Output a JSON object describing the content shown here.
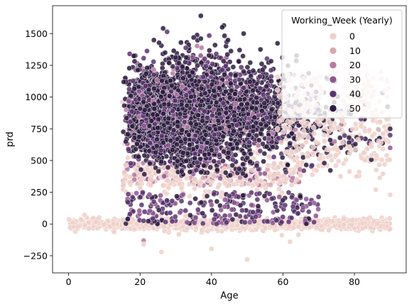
{
  "chart_data": {
    "type": "scatter",
    "title": "",
    "xlabel": "Age",
    "ylabel": "prd",
    "xlim": [
      -4.5,
      94.5
    ],
    "ylim": [
      -385,
      1720
    ],
    "x_ticks": [
      0,
      20,
      40,
      60,
      80
    ],
    "y_ticks": [
      -250,
      0,
      250,
      500,
      750,
      1000,
      1250,
      1500
    ],
    "y_tick_labels": [
      "−250",
      "0",
      "250",
      "500",
      "750",
      "1000",
      "1250",
      "1500"
    ],
    "grid": false,
    "legend": {
      "title": "Working_Week (Yearly)",
      "placement": "top-right",
      "entries": [
        {
          "label": "0",
          "color": "#efd0c9"
        },
        {
          "label": "10",
          "color": "#dba8b0"
        },
        {
          "label": "20",
          "color": "#b97aa0"
        },
        {
          "label": "30",
          "color": "#8e5690"
        },
        {
          "label": "40",
          "color": "#5c3470"
        },
        {
          "label": "50",
          "color": "#2d1c40"
        }
      ]
    },
    "hue_colormap": [
      {
        "value": 0,
        "color": "#efd0c9"
      },
      {
        "value": 10,
        "color": "#dba8b0"
      },
      {
        "value": 20,
        "color": "#b97aa0"
      },
      {
        "value": 30,
        "color": "#8e5690"
      },
      {
        "value": 40,
        "color": "#5c3470"
      },
      {
        "value": 50,
        "color": "#2d1c40"
      },
      {
        "value": 52,
        "color": "#2a1a3c"
      }
    ],
    "series": [
      {
        "name": "Working_Week = 0 (baseline band)",
        "hue": 0,
        "x_range": [
          0,
          90
        ],
        "y_center": 0,
        "y_spread": 30,
        "notes": "dense horizontal band of points near prd 0 across all ages"
      },
      {
        "name": "Working_Week = 0 (scattered)",
        "hue": 0,
        "x_range": [
          15,
          90
        ],
        "y_range": [
          200,
          1000
        ],
        "notes": "light points scattered above the band, especially ages 60-90"
      },
      {
        "name": "Working_Week 20-52 (main cloud)",
        "hue_range": [
          20,
          52
        ],
        "x_range": [
          15,
          90
        ],
        "y_center": 850,
        "y_spread": 200,
        "y_max": 1640,
        "notes": "dense dark cloud, peak near age 37-40"
      },
      {
        "name": "Working_Week 10-30 (lower band)",
        "hue_range": [
          10,
          30
        ],
        "x_range": [
          15,
          65
        ],
        "y_range": [
          300,
          480
        ],
        "notes": "mid-tone points forming a band around prd 300-480"
      },
      {
        "name": "Working_Week 30-52 (low scatter)",
        "hue_range": [
          30,
          52
        ],
        "x_range": [
          16,
          70
        ],
        "y_range": [
          0,
          250
        ],
        "notes": "sparser points between the baseline and the main cloud"
      }
    ],
    "highlighted_points": [
      {
        "x": 37,
        "y": 1640,
        "hue": 52
      },
      {
        "x": 35,
        "y": 1470,
        "hue": 52
      },
      {
        "x": 37,
        "y": 1460,
        "hue": 52
      },
      {
        "x": 43,
        "y": 1550,
        "hue": 52
      },
      {
        "x": 49,
        "y": 1500,
        "hue": 52
      },
      {
        "x": 20,
        "y": 1250,
        "hue": 50
      },
      {
        "x": 27,
        "y": 1350,
        "hue": 50
      },
      {
        "x": 90,
        "y": 750,
        "hue": 50
      },
      {
        "x": 90,
        "y": 700,
        "hue": 40
      },
      {
        "x": 90,
        "y": 600,
        "hue": 30
      },
      {
        "x": 90,
        "y": 230,
        "hue": 0
      },
      {
        "x": 86,
        "y": 270,
        "hue": 0
      },
      {
        "x": 82,
        "y": 520,
        "hue": 0
      },
      {
        "x": 26,
        "y": -220,
        "hue": 0
      },
      {
        "x": 40,
        "y": -195,
        "hue": 0
      },
      {
        "x": 50,
        "y": -280,
        "hue": 0
      },
      {
        "x": 62,
        "y": -140,
        "hue": 0
      },
      {
        "x": 21,
        "y": -130,
        "hue": 20
      },
      {
        "x": 21,
        "y": -160,
        "hue": 0
      }
    ]
  }
}
